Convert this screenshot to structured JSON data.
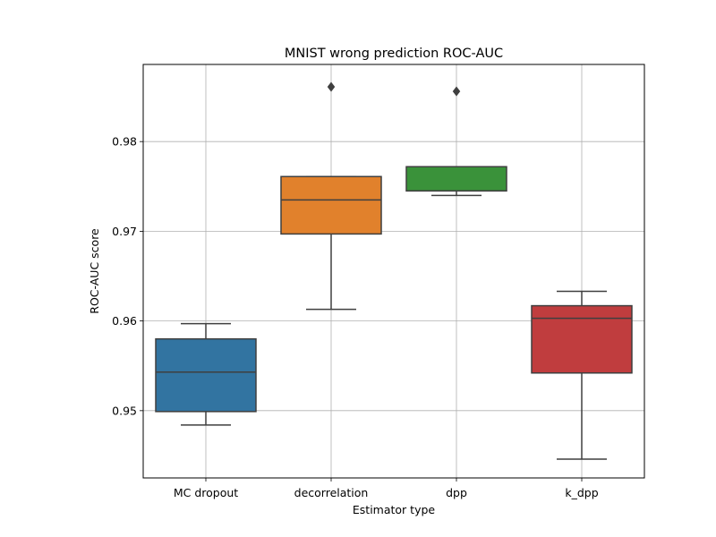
{
  "chart_data": {
    "type": "box",
    "title": "MNIST wrong prediction ROC-AUC",
    "xlabel": "Estimator type",
    "ylabel": "ROC-AUC score",
    "ylim": [
      0.9425,
      0.9886
    ],
    "yticks": [
      0.95,
      0.96,
      0.97,
      0.98
    ],
    "ytick_labels": [
      "0.95",
      "0.96",
      "0.97",
      "0.98"
    ],
    "grid": true,
    "categories": [
      "MC dropout",
      "decorrelation",
      "dpp",
      "k_dpp"
    ],
    "boxes": [
      {
        "category": "MC dropout",
        "color": "#3274a1",
        "whisker_low": 0.9484,
        "q1": 0.9499,
        "median": 0.9543,
        "q3": 0.958,
        "whisker_high": 0.9597,
        "outliers": []
      },
      {
        "category": "decorrelation",
        "color": "#e1812c",
        "whisker_low": 0.9613,
        "q1": 0.9697,
        "median": 0.9735,
        "q3": 0.9761,
        "whisker_high": 0.9761,
        "outliers": [
          0.9861
        ]
      },
      {
        "category": "dpp",
        "color": "#3a923a",
        "whisker_low": 0.974,
        "q1": 0.9745,
        "median": 0.9745,
        "q3": 0.9772,
        "whisker_high": 0.9772,
        "outliers": [
          0.9856
        ]
      },
      {
        "category": "k_dpp",
        "color": "#c03d3e",
        "whisker_low": 0.9446,
        "q1": 0.9542,
        "median": 0.9603,
        "q3": 0.9617,
        "whisker_high": 0.9633,
        "outliers": []
      }
    ]
  }
}
